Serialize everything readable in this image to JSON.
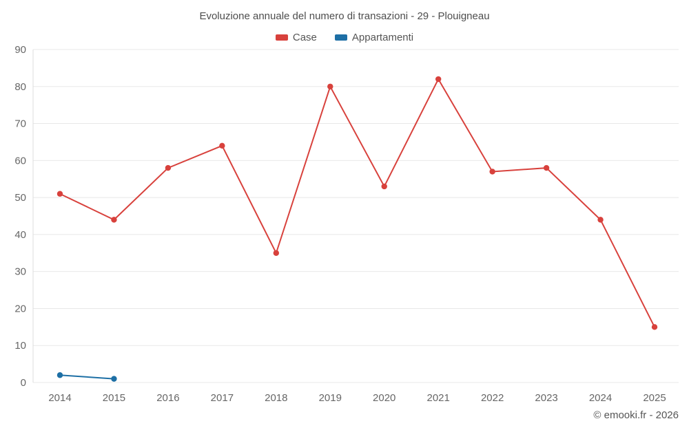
{
  "chart_data": {
    "type": "line",
    "title": "Evoluzione annuale del numero di transazioni - 29 - Plouigneau",
    "categories": [
      "2014",
      "2015",
      "2016",
      "2017",
      "2018",
      "2019",
      "2020",
      "2021",
      "2022",
      "2023",
      "2024",
      "2025"
    ],
    "series": [
      {
        "name": "Case",
        "color": "#d8413c",
        "values": [
          51,
          44,
          58,
          64,
          35,
          80,
          53,
          82,
          57,
          58,
          44,
          15
        ]
      },
      {
        "name": "Appartamenti",
        "color": "#1d6fa5",
        "values": [
          2,
          1,
          null,
          null,
          null,
          null,
          null,
          null,
          null,
          null,
          null,
          null
        ]
      }
    ],
    "ylim": [
      0,
      90
    ],
    "ytick_step": 10,
    "grid": "horizontal",
    "legend_position": "top",
    "grid_color": "#e8e8e8",
    "axis_color": "#dddddd",
    "tick_label_color": "#666666"
  },
  "footer": {
    "copyright": "© emooki.fr - 2026"
  }
}
